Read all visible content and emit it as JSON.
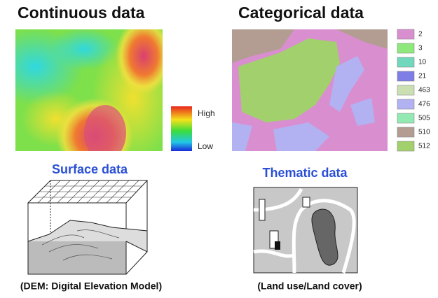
{
  "left": {
    "title": "Continuous data",
    "legend": {
      "high": "High",
      "low": "Low"
    },
    "subtitle": "Surface data",
    "caption": "(DEM: Digital Elevation Model)"
  },
  "right": {
    "title": "Categorical data",
    "legend": [
      {
        "label": "2",
        "color": "#d98ed0"
      },
      {
        "label": "3",
        "color": "#8fe87c"
      },
      {
        "label": "10",
        "color": "#72d8bd"
      },
      {
        "label": "21",
        "color": "#7e7ee6"
      },
      {
        "label": "463",
        "color": "#cbe0b2"
      },
      {
        "label": "476",
        "color": "#b2b2f2"
      },
      {
        "label": "505",
        "color": "#92eab2"
      },
      {
        "label": "510",
        "color": "#b39d92"
      },
      {
        "label": "512",
        "color": "#a2d06c"
      }
    ],
    "subtitle": "Thematic data",
    "caption": "(Land use/Land cover)"
  }
}
